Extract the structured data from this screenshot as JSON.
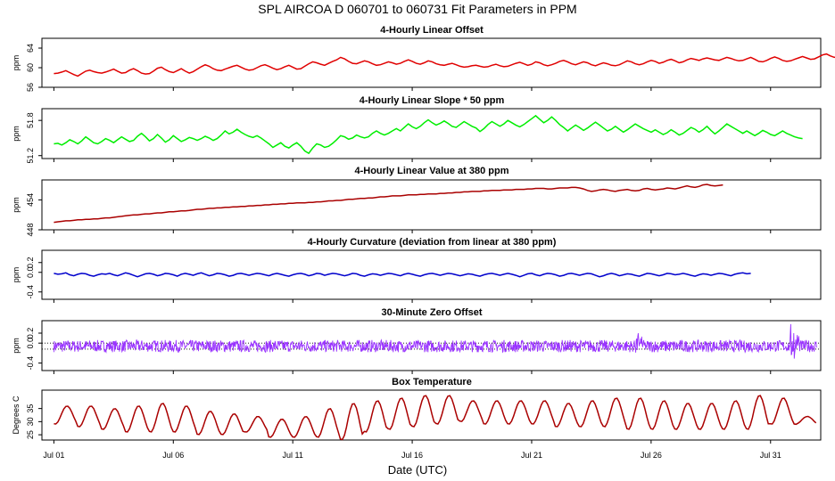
{
  "page": {
    "title": "SPL   AIRCOA D   060701 to 060731   Fit Parameters in PPM",
    "xlabel": "Date (UTC)",
    "xticks": [
      "Jul 01",
      "Jul 06",
      "Jul 11",
      "Jul 16",
      "Jul 21",
      "Jul 26",
      "Jul 31"
    ]
  },
  "chart_data": [
    {
      "type": "line",
      "title": "4-Hourly Linear Offset",
      "ylabel": "ppm",
      "color": "#e00000",
      "yticks": [
        "56",
        "60",
        "64"
      ],
      "ylim": [
        56,
        66
      ],
      "x_start": 1,
      "x_step": 0.1667,
      "values": [
        58.8,
        58.9,
        59.1,
        59.4,
        59.0,
        58.6,
        58.3,
        58.8,
        59.3,
        59.5,
        59.2,
        59.0,
        58.9,
        59.1,
        59.4,
        59.7,
        59.3,
        58.9,
        59.0,
        59.5,
        59.8,
        59.4,
        58.9,
        58.7,
        58.8,
        59.3,
        59.9,
        60.1,
        59.6,
        59.2,
        59.0,
        59.4,
        59.8,
        59.3,
        58.9,
        59.2,
        59.7,
        60.2,
        60.6,
        60.3,
        59.8,
        59.5,
        59.4,
        59.7,
        60.0,
        60.3,
        60.5,
        60.1,
        59.7,
        59.5,
        59.6,
        60.0,
        60.4,
        60.6,
        60.3,
        59.9,
        59.6,
        59.8,
        60.2,
        60.5,
        60.1,
        59.7,
        59.8,
        60.3,
        60.8,
        61.2,
        61.0,
        60.7,
        60.5,
        60.9,
        61.3,
        61.6,
        62.1,
        61.8,
        61.3,
        60.9,
        60.8,
        61.1,
        61.4,
        61.2,
        60.8,
        60.5,
        60.6,
        60.9,
        61.2,
        61.0,
        60.7,
        60.9,
        61.3,
        61.6,
        61.3,
        60.9,
        60.7,
        61.0,
        61.4,
        61.2,
        60.8,
        60.6,
        60.5,
        60.7,
        60.9,
        60.6,
        60.3,
        60.1,
        60.2,
        60.4,
        60.5,
        60.3,
        60.1,
        60.2,
        60.5,
        60.7,
        60.4,
        60.2,
        60.3,
        60.6,
        60.9,
        61.1,
        60.8,
        60.5,
        60.7,
        61.2,
        61.0,
        60.6,
        60.4,
        60.6,
        60.9,
        61.3,
        61.5,
        61.2,
        60.8,
        60.6,
        60.9,
        61.2,
        61.0,
        60.6,
        60.4,
        60.7,
        61.0,
        60.8,
        60.5,
        60.4,
        60.6,
        61.0,
        61.4,
        61.2,
        60.8,
        60.6,
        60.8,
        61.2,
        61.5,
        61.3,
        60.9,
        61.1,
        61.5,
        61.7,
        61.4,
        61.0,
        61.2,
        61.6,
        61.9,
        61.7,
        61.5,
        61.8,
        62.0,
        61.8,
        61.6,
        61.5,
        61.8,
        62.1,
        61.9,
        61.6,
        61.4,
        61.5,
        61.8,
        62.1,
        61.7,
        61.3,
        61.2,
        61.5,
        61.9,
        62.2,
        61.9,
        61.5,
        61.3,
        61.4,
        61.7,
        62.0,
        62.3,
        62.0,
        61.7,
        61.8,
        62.2,
        62.6,
        62.8,
        62.4,
        62.1,
        62.3,
        62.7,
        63.1,
        62.8,
        62.5,
        62.8,
        63.3,
        63.7,
        64.3,
        64.6,
        64.2,
        63.9,
        64.0
      ]
    },
    {
      "type": "line",
      "title": "4-Hourly Linear Slope * 50 ppm",
      "ylabel": "ppm",
      "color": "#00ee00",
      "yticks": [
        "51.2",
        "51.8"
      ],
      "ylim": [
        51.15,
        52.0
      ],
      "x_start": 1,
      "x_step": 0.1667,
      "values": [
        51.4,
        51.41,
        51.38,
        51.42,
        51.47,
        51.44,
        51.4,
        51.45,
        51.52,
        51.47,
        51.42,
        51.4,
        51.44,
        51.49,
        51.46,
        51.42,
        51.47,
        51.52,
        51.48,
        51.44,
        51.46,
        51.53,
        51.58,
        51.52,
        51.45,
        51.49,
        51.56,
        51.5,
        51.43,
        51.47,
        51.54,
        51.49,
        51.44,
        51.47,
        51.51,
        51.49,
        51.46,
        51.49,
        51.53,
        51.5,
        51.46,
        51.49,
        51.55,
        51.62,
        51.57,
        51.6,
        51.65,
        51.6,
        51.56,
        51.53,
        51.51,
        51.54,
        51.5,
        51.45,
        51.4,
        51.34,
        51.38,
        51.42,
        51.36,
        51.33,
        51.38,
        51.42,
        51.36,
        51.28,
        51.24,
        51.33,
        51.4,
        51.38,
        51.34,
        51.36,
        51.41,
        51.47,
        51.54,
        51.52,
        51.48,
        51.5,
        51.55,
        51.52,
        51.5,
        51.52,
        51.58,
        51.62,
        51.58,
        51.55,
        51.58,
        51.62,
        51.66,
        51.62,
        51.68,
        51.74,
        51.69,
        51.66,
        51.7,
        51.76,
        51.81,
        51.76,
        51.72,
        51.75,
        51.79,
        51.75,
        51.7,
        51.68,
        51.73,
        51.78,
        51.74,
        51.7,
        51.67,
        51.61,
        51.66,
        51.73,
        51.78,
        51.74,
        51.7,
        51.74,
        51.8,
        51.76,
        51.72,
        51.69,
        51.73,
        51.78,
        51.83,
        51.88,
        51.82,
        51.76,
        51.8,
        51.86,
        51.8,
        51.73,
        51.68,
        51.62,
        51.67,
        51.72,
        51.68,
        51.63,
        51.67,
        51.72,
        51.77,
        51.72,
        51.67,
        51.62,
        51.65,
        51.7,
        51.65,
        51.6,
        51.64,
        51.69,
        51.74,
        51.7,
        51.66,
        51.63,
        51.6,
        51.64,
        51.6,
        51.56,
        51.59,
        51.64,
        51.6,
        51.55,
        51.58,
        51.63,
        51.68,
        51.65,
        51.6,
        51.64,
        51.7,
        51.63,
        51.57,
        51.62,
        51.68,
        51.74,
        51.7,
        51.66,
        51.62,
        51.58,
        51.62,
        51.58,
        51.54,
        51.58,
        51.63,
        51.6,
        51.56,
        51.54,
        51.58,
        51.62,
        51.58,
        51.55,
        51.52,
        51.5,
        51.49
      ]
    },
    {
      "type": "line",
      "title": "4-Hourly Linear Value at 380 ppm",
      "ylabel": "ppm",
      "color": "#aa0000",
      "yticks": [
        "448",
        "454"
      ],
      "ylim": [
        448,
        458
      ],
      "x_start": 1,
      "x_step": 0.1667,
      "values": [
        449.5,
        449.6,
        449.7,
        449.8,
        449.8,
        449.9,
        450.0,
        450.0,
        450.1,
        450.1,
        450.2,
        450.2,
        450.3,
        450.4,
        450.4,
        450.5,
        450.6,
        450.7,
        450.8,
        450.9,
        451.0,
        451.0,
        451.1,
        451.2,
        451.2,
        451.3,
        451.4,
        451.4,
        451.5,
        451.6,
        451.6,
        451.7,
        451.8,
        451.8,
        451.9,
        452.0,
        452.1,
        452.1,
        452.2,
        452.3,
        452.3,
        452.4,
        452.4,
        452.5,
        452.5,
        452.6,
        452.6,
        452.7,
        452.7,
        452.8,
        452.8,
        452.9,
        452.9,
        453.0,
        453.0,
        453.1,
        453.1,
        453.2,
        453.2,
        453.3,
        453.3,
        453.4,
        453.4,
        453.4,
        453.5,
        453.5,
        453.6,
        453.6,
        453.7,
        453.8,
        453.8,
        453.9,
        453.9,
        454.0,
        454.1,
        454.1,
        454.2,
        454.3,
        454.3,
        454.4,
        454.4,
        454.5,
        454.6,
        454.6,
        454.7,
        454.8,
        454.8,
        454.8,
        454.9,
        455.0,
        455.0,
        455.0,
        455.1,
        455.1,
        455.2,
        455.2,
        455.2,
        455.3,
        455.3,
        455.4,
        455.4,
        455.5,
        455.5,
        455.6,
        455.6,
        455.7,
        455.7,
        455.7,
        455.8,
        455.8,
        455.9,
        455.9,
        455.9,
        456.0,
        456.0,
        456.0,
        456.1,
        456.1,
        456.1,
        456.2,
        456.2,
        456.3,
        456.3,
        456.3,
        456.2,
        456.2,
        456.3,
        456.4,
        456.4,
        456.4,
        456.5,
        456.5,
        456.4,
        456.2,
        455.9,
        455.7,
        455.8,
        456.0,
        456.1,
        456.0,
        455.8,
        455.7,
        455.9,
        456.0,
        456.1,
        455.9,
        455.8,
        455.9,
        456.2,
        456.3,
        456.1,
        456.0,
        456.1,
        456.2,
        456.4,
        456.3,
        456.2,
        456.4,
        456.6,
        456.8,
        456.6,
        456.5,
        456.7,
        457.0,
        457.1,
        456.9,
        456.8,
        456.9,
        457.0
      ]
    },
    {
      "type": "line",
      "title": "4-Hourly Curvature (deviation from linear at 380 ppm)",
      "ylabel": "ppm",
      "color": "#0000cc",
      "yticks": [
        "-0.4",
        "0.0",
        "0.2"
      ],
      "ylim": [
        -0.55,
        0.45
      ],
      "x_start": 1,
      "x_step": 0.1667,
      "values": [
        -0.02,
        -0.04,
        -0.03,
        -0.01,
        -0.05,
        -0.07,
        -0.04,
        -0.02,
        -0.03,
        -0.06,
        -0.08,
        -0.05,
        -0.03,
        -0.04,
        -0.02,
        -0.05,
        -0.07,
        -0.04,
        -0.01,
        -0.03,
        -0.06,
        -0.09,
        -0.06,
        -0.03,
        -0.02,
        -0.04,
        -0.07,
        -0.05,
        -0.02,
        -0.03,
        -0.05,
        -0.08,
        -0.04,
        -0.02,
        -0.04,
        -0.06,
        -0.03,
        -0.01,
        -0.04,
        -0.07,
        -0.05,
        -0.02,
        -0.03,
        -0.05,
        -0.08,
        -0.06,
        -0.03,
        -0.02,
        -0.04,
        -0.06,
        -0.04,
        -0.02,
        -0.03,
        -0.05,
        -0.07,
        -0.04,
        -0.02,
        -0.04,
        -0.06,
        -0.08,
        -0.05,
        -0.03,
        -0.02,
        -0.04,
        -0.07,
        -0.05,
        -0.02,
        -0.03,
        -0.06,
        -0.04,
        -0.02,
        -0.03,
        -0.05,
        -0.07,
        -0.05,
        -0.02,
        -0.03,
        -0.06,
        -0.08,
        -0.05,
        -0.03,
        -0.04,
        -0.06,
        -0.04,
        -0.02,
        -0.03,
        -0.05,
        -0.07,
        -0.04,
        -0.02,
        -0.04,
        -0.06,
        -0.08,
        -0.05,
        -0.03,
        -0.02,
        -0.04,
        -0.06,
        -0.04,
        -0.02,
        -0.03,
        -0.05,
        -0.07,
        -0.05,
        -0.03,
        -0.04,
        -0.06,
        -0.08,
        -0.05,
        -0.03,
        -0.02,
        -0.04,
        -0.06,
        -0.04,
        -0.02,
        -0.04,
        -0.06,
        -0.09,
        -0.06,
        -0.03,
        -0.02,
        -0.05,
        -0.07,
        -0.04,
        -0.02,
        -0.03,
        -0.05,
        -0.08,
        -0.06,
        -0.03,
        -0.02,
        -0.04,
        -0.06,
        -0.04,
        -0.02,
        -0.03,
        -0.06,
        -0.09,
        -0.07,
        -0.04,
        -0.02,
        -0.04,
        -0.07,
        -0.05,
        -0.03,
        -0.04,
        -0.06,
        -0.08,
        -0.05,
        -0.02,
        -0.03,
        -0.05,
        -0.07,
        -0.05,
        -0.02,
        -0.03,
        -0.05,
        -0.04,
        -0.02,
        -0.04,
        -0.06,
        -0.08,
        -0.05,
        -0.03,
        -0.04,
        -0.06,
        -0.04,
        -0.02,
        -0.03,
        -0.05,
        -0.07,
        -0.04,
        -0.02,
        -0.01,
        -0.03,
        -0.02
      ]
    },
    {
      "type": "line",
      "title": "30-Minute Zero Offset",
      "ylabel": "ppm",
      "color": "#9933ff",
      "yticks": [
        "-0.4",
        "0.0",
        "0.2"
      ],
      "ylim": [
        -0.55,
        0.45
      ],
      "ref_lines": [
        0.0,
        -0.12
      ],
      "x_start": 1,
      "x_step": 0.0208,
      "noise_amp": 0.12,
      "values": []
    },
    {
      "type": "line",
      "title": "Box Temperature",
      "ylabel": "Degrees C",
      "color": "#aa0000",
      "yticks": [
        "25",
        "30",
        "35"
      ],
      "ylim": [
        23,
        42
      ],
      "x_start": 1,
      "x_step": 0.0833,
      "daily_min": [
        29,
        28,
        27,
        26,
        26,
        26,
        25,
        25,
        26,
        24,
        24,
        24,
        23,
        26,
        27,
        28,
        29,
        30,
        29,
        29,
        29,
        28,
        28,
        28,
        27,
        27,
        27,
        27,
        27,
        27,
        29,
        29
      ],
      "daily_max": [
        36,
        36,
        35,
        36,
        37,
        36,
        34,
        33,
        32,
        31,
        32,
        35,
        37,
        38,
        39,
        40,
        40,
        38,
        38,
        38,
        38,
        37,
        38,
        39,
        39,
        38,
        37,
        37,
        38,
        40,
        39,
        32
      ],
      "values": []
    }
  ]
}
